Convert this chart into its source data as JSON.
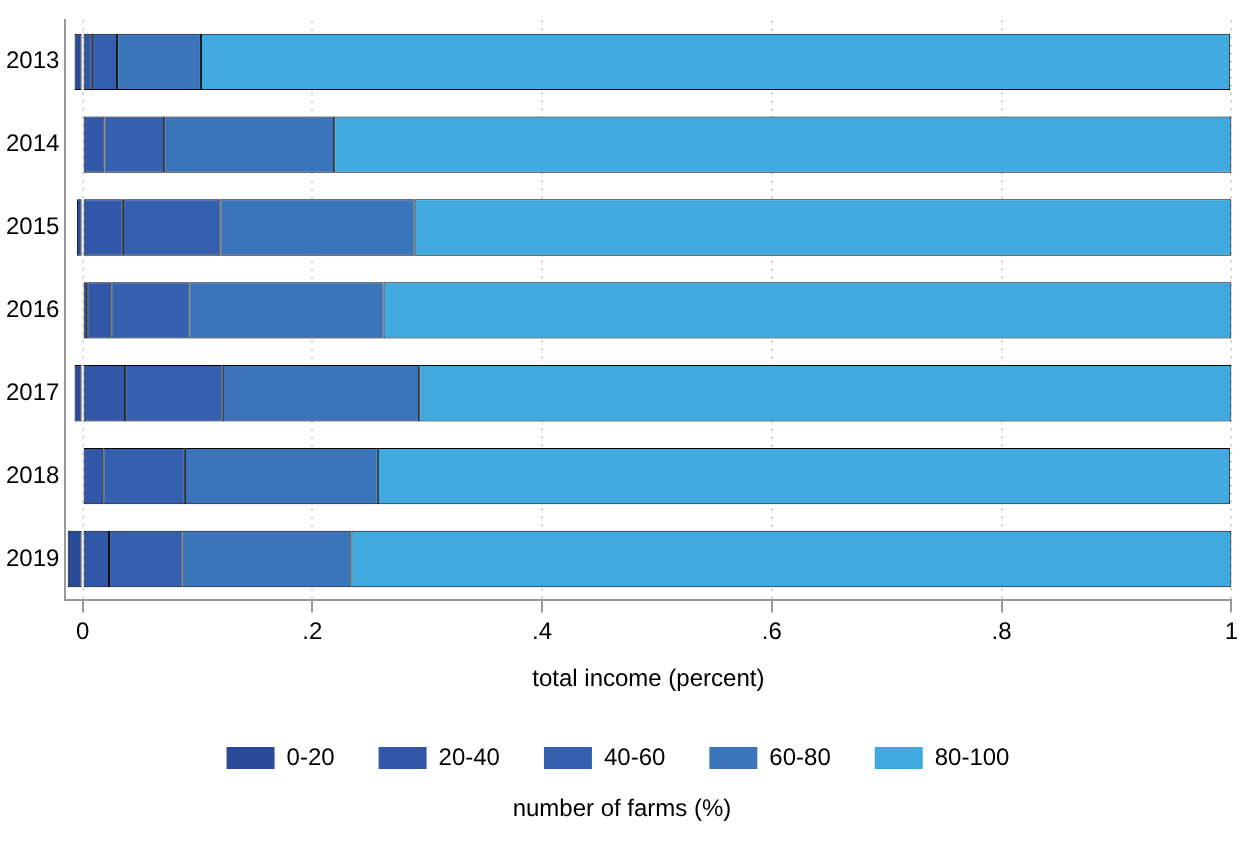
{
  "chart_data": {
    "type": "bar",
    "orientation": "horizontal",
    "stacked": true,
    "categories": [
      "2013",
      "2014",
      "2015",
      "2016",
      "2017",
      "2018",
      "2019"
    ],
    "series": [
      {
        "name": "0-20",
        "color": "#2a4a9a",
        "values": [
          -0.007,
          0,
          -0.005,
          0.004,
          -0.007,
          null,
          -0.013
        ]
      },
      {
        "name": "20-40",
        "color": "#3158a8",
        "values": [
          0.008,
          0.019,
          0.035,
          0.021,
          0.037,
          0.018,
          0.023
        ]
      },
      {
        "name": "40-60",
        "color": "#3460ad",
        "values": [
          0.022,
          0.052,
          0.085,
          0.068,
          0.085,
          0.071,
          0.064
        ]
      },
      {
        "name": "60-80",
        "color": "#3a75bb",
        "values": [
          0.073,
          0.148,
          0.169,
          0.169,
          0.171,
          0.168,
          0.147
        ]
      },
      {
        "name": "80-100",
        "color": "#3fa9e0",
        "values": [
          0.896,
          0.781,
          0.711,
          0.738,
          0.707,
          0.742,
          0.766
        ]
      }
    ],
    "xlim": [
      -0.015,
      1
    ],
    "xticks": [
      0,
      {
        "value": 0.2,
        "label": ".2"
      },
      {
        "value": 0.4,
        "label": ".4"
      },
      {
        "value": 0.6,
        "label": ".6"
      },
      {
        "value": 0.8,
        "label": ".8"
      },
      1
    ],
    "xlabel": "total income (percent)",
    "legend_title": "number of farms (%)",
    "legend": "bottom",
    "grid": "x"
  }
}
